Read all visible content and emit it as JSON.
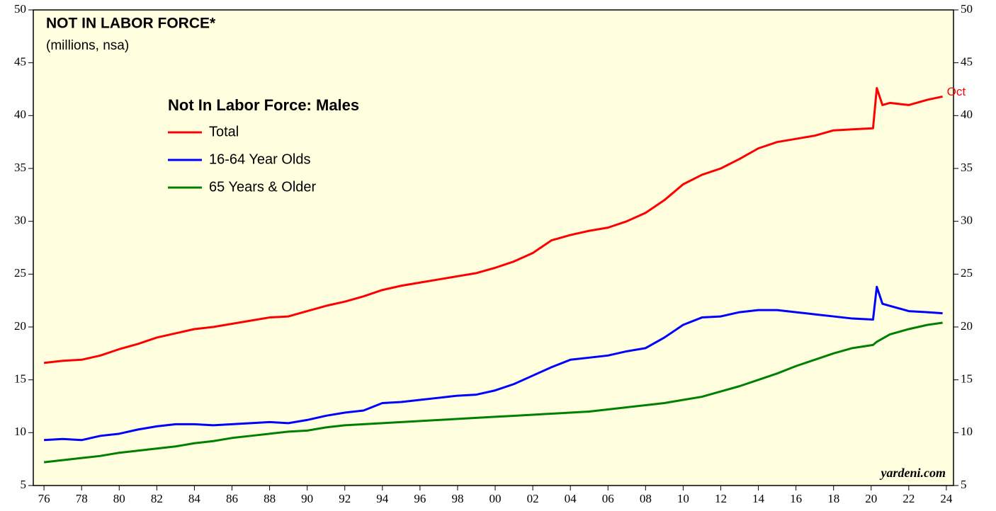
{
  "chart_data": {
    "type": "line",
    "title": "NOT IN LABOR FORCE*",
    "subtitle": "(millions, nsa)",
    "legend_title": "Not In Labor Force: Males",
    "annotation": "Oct",
    "source": "yardeni.com",
    "x": [
      1976,
      1977,
      1978,
      1979,
      1980,
      1981,
      1982,
      1983,
      1984,
      1985,
      1986,
      1987,
      1988,
      1989,
      1990,
      1991,
      1992,
      1993,
      1994,
      1995,
      1996,
      1997,
      1998,
      1999,
      2000,
      2001,
      2002,
      2003,
      2004,
      2005,
      2006,
      2007,
      2008,
      2009,
      2010,
      2011,
      2012,
      2013,
      2014,
      2015,
      2016,
      2017,
      2018,
      2019,
      2020.1,
      2020.3,
      2020.6,
      2021,
      2022,
      2023,
      2023.8
    ],
    "series": [
      {
        "name": "Total",
        "color": "#ff0000",
        "values": [
          16.6,
          16.8,
          16.9,
          17.3,
          17.9,
          18.4,
          19.0,
          19.4,
          19.8,
          20.0,
          20.3,
          20.6,
          20.9,
          21.0,
          21.5,
          22.0,
          22.4,
          22.9,
          23.5,
          23.9,
          24.2,
          24.5,
          24.8,
          25.1,
          25.6,
          26.2,
          27.0,
          28.2,
          28.7,
          29.1,
          29.4,
          30.0,
          30.8,
          32.0,
          33.5,
          34.4,
          35.0,
          35.9,
          36.9,
          37.5,
          37.8,
          38.1,
          38.6,
          38.7,
          38.8,
          42.6,
          41.0,
          41.2,
          41.0,
          41.5,
          41.8
        ]
      },
      {
        "name": "16-64 Year Olds",
        "color": "#0000ff",
        "values": [
          9.3,
          9.4,
          9.3,
          9.7,
          9.9,
          10.3,
          10.6,
          10.8,
          10.8,
          10.7,
          10.8,
          10.9,
          11.0,
          10.9,
          11.2,
          11.6,
          11.9,
          12.1,
          12.8,
          12.9,
          13.1,
          13.3,
          13.5,
          13.6,
          14.0,
          14.6,
          15.4,
          16.2,
          16.9,
          17.1,
          17.3,
          17.7,
          18.0,
          19.0,
          20.2,
          20.9,
          21.0,
          21.4,
          21.6,
          21.6,
          21.4,
          21.2,
          21.0,
          20.8,
          20.7,
          23.8,
          22.2,
          22.0,
          21.5,
          21.4,
          21.3
        ]
      },
      {
        "name": "65 Years & Older",
        "color": "#008000",
        "values": [
          7.2,
          7.4,
          7.6,
          7.8,
          8.1,
          8.3,
          8.5,
          8.7,
          9.0,
          9.2,
          9.5,
          9.7,
          9.9,
          10.1,
          10.2,
          10.5,
          10.7,
          10.8,
          10.9,
          11.0,
          11.1,
          11.2,
          11.3,
          11.4,
          11.5,
          11.6,
          11.7,
          11.8,
          11.9,
          12.0,
          12.2,
          12.4,
          12.6,
          12.8,
          13.1,
          13.4,
          13.9,
          14.4,
          15.0,
          15.6,
          16.3,
          16.9,
          17.5,
          18.0,
          18.3,
          18.6,
          18.9,
          19.3,
          19.8,
          20.2,
          20.4
        ]
      }
    ],
    "xlim": [
      1975.43,
      2024.38
    ],
    "xticks": [
      {
        "value": 1976,
        "label": "76"
      },
      {
        "value": 1978,
        "label": "78"
      },
      {
        "value": 1980,
        "label": "80"
      },
      {
        "value": 1982,
        "label": "82"
      },
      {
        "value": 1984,
        "label": "84"
      },
      {
        "value": 1986,
        "label": "86"
      },
      {
        "value": 1988,
        "label": "88"
      },
      {
        "value": 1990,
        "label": "90"
      },
      {
        "value": 1992,
        "label": "92"
      },
      {
        "value": 1994,
        "label": "94"
      },
      {
        "value": 1996,
        "label": "96"
      },
      {
        "value": 1998,
        "label": "98"
      },
      {
        "value": 2000,
        "label": "00"
      },
      {
        "value": 2002,
        "label": "02"
      },
      {
        "value": 2004,
        "label": "04"
      },
      {
        "value": 2006,
        "label": "06"
      },
      {
        "value": 2008,
        "label": "08"
      },
      {
        "value": 2010,
        "label": "10"
      },
      {
        "value": 2012,
        "label": "12"
      },
      {
        "value": 2014,
        "label": "14"
      },
      {
        "value": 2016,
        "label": "16"
      },
      {
        "value": 2018,
        "label": "18"
      },
      {
        "value": 2020,
        "label": "20"
      },
      {
        "value": 2022,
        "label": "22"
      },
      {
        "value": 2024,
        "label": "24"
      }
    ],
    "ylim": [
      5,
      50
    ],
    "yticks": [
      5,
      10,
      15,
      20,
      25,
      30,
      35,
      40,
      45,
      50
    ],
    "y2lim": [
      5,
      50
    ],
    "y2ticks": [
      5,
      10,
      15,
      20,
      25,
      30,
      35,
      40,
      45,
      50
    ],
    "background": "#ffffe0"
  }
}
